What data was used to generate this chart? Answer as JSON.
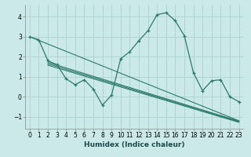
{
  "xlabel": "Humidex (Indice chaleur)",
  "background_color": "#cce9e9",
  "grid_color": "#b0d4d4",
  "line_color": "#2a7a6a",
  "xlim": [
    -0.5,
    23.5
  ],
  "ylim": [
    -1.6,
    4.6
  ],
  "yticks": [
    -1,
    0,
    1,
    2,
    3,
    4
  ],
  "xticks": [
    0,
    1,
    2,
    3,
    4,
    5,
    6,
    7,
    8,
    9,
    10,
    11,
    12,
    13,
    14,
    15,
    16,
    17,
    18,
    19,
    20,
    21,
    22,
    23
  ],
  "series1_x": [
    0,
    1,
    2,
    3,
    4,
    5,
    6,
    7,
    8,
    9,
    10,
    11,
    12,
    13,
    14,
    15,
    16,
    17,
    18,
    19,
    20,
    21,
    22,
    23
  ],
  "series1_y": [
    3.0,
    2.85,
    1.8,
    1.6,
    0.9,
    0.6,
    0.85,
    0.38,
    -0.42,
    0.08,
    1.9,
    2.25,
    2.8,
    3.3,
    4.1,
    4.2,
    3.8,
    3.05,
    1.2,
    0.3,
    0.8,
    0.85,
    0.0,
    -0.25
  ],
  "line2_x": [
    0,
    23
  ],
  "line2_y": [
    3.0,
    -1.2
  ],
  "line3_x": [
    2,
    23
  ],
  "line3_y": [
    1.72,
    -1.22
  ],
  "line4_x": [
    2,
    23
  ],
  "line4_y": [
    1.65,
    -1.25
  ],
  "line5_x": [
    2,
    23
  ],
  "line5_y": [
    1.58,
    -1.28
  ]
}
